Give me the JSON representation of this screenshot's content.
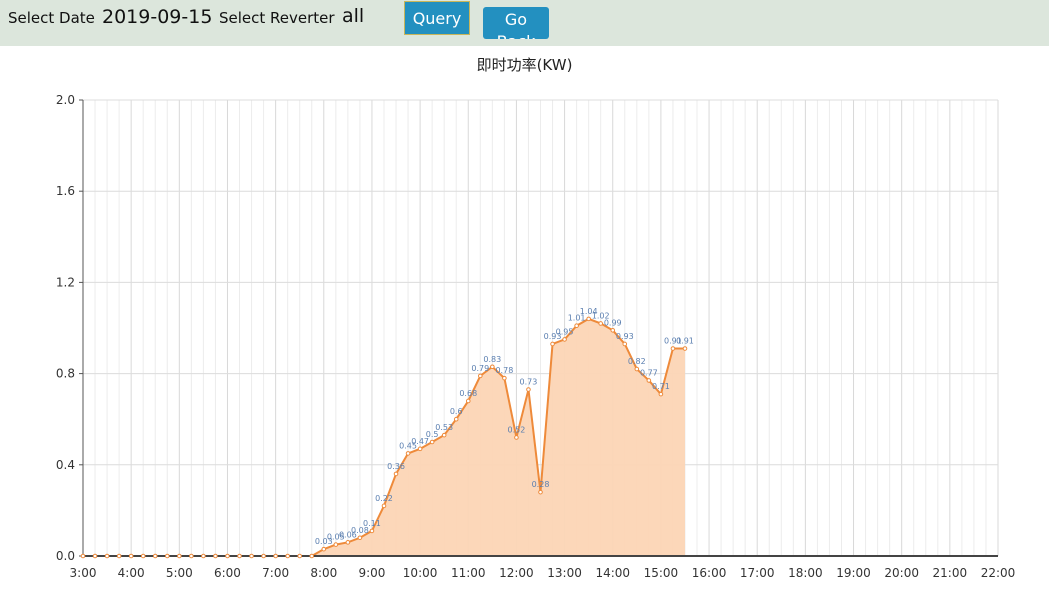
{
  "toolbar": {
    "date_label": "Select Date",
    "date_value": "2019-09-15",
    "reverter_label": "Select Reverter",
    "reverter_value": "all",
    "query_button": "Query",
    "back_button": "Go Back"
  },
  "chart_data": {
    "type": "area",
    "title": "即时功率(KW)",
    "xlabel": "",
    "ylabel": "",
    "xlim_hours": [
      3,
      22
    ],
    "ylim": [
      0,
      2.0
    ],
    "y_ticks": [
      "0.0",
      "0.4",
      "0.8",
      "1.2",
      "1.6",
      "2.0"
    ],
    "x_ticks": [
      "3:00",
      "4:00",
      "5:00",
      "6:00",
      "7:00",
      "8:00",
      "9:00",
      "10:00",
      "11:00",
      "12:00",
      "13:00",
      "14:00",
      "15:00",
      "16:00",
      "17:00",
      "18:00",
      "19:00",
      "20:00",
      "21:00",
      "22:00"
    ],
    "grid": true,
    "colors": {
      "line": "#ee8a3a",
      "fill": "#fcd5b5",
      "label": "#5b7fb0"
    },
    "x_hours": [
      3,
      3.25,
      3.5,
      3.75,
      4,
      4.25,
      4.5,
      4.75,
      5,
      5.25,
      5.5,
      5.75,
      6,
      6.25,
      6.5,
      6.75,
      7,
      7.25,
      7.5,
      7.75,
      8,
      8.25,
      8.5,
      8.75,
      9,
      9.25,
      9.5,
      9.75,
      10,
      10.25,
      10.5,
      10.75,
      11,
      11.25,
      11.5,
      11.75,
      12,
      12.25,
      12.5,
      12.75,
      13,
      13.25,
      13.5,
      13.75,
      14,
      14.25,
      14.5,
      14.75,
      15,
      15.25,
      15.5
    ],
    "values": [
      0,
      0,
      0,
      0,
      0,
      0,
      0,
      0,
      0,
      0,
      0,
      0,
      0,
      0,
      0,
      0,
      0,
      0,
      0,
      0,
      0.03,
      0.05,
      0.06,
      0.08,
      0.11,
      0.22,
      0.36,
      0.45,
      0.47,
      0.5,
      0.53,
      0.6,
      0.68,
      0.79,
      0.83,
      0.78,
      0.52,
      0.73,
      0.28,
      0.93,
      0.95,
      1.01,
      1.04,
      1.02,
      0.99,
      0.93,
      0.82,
      0.77,
      0.71,
      0.91,
      0.91
    ],
    "data_labels": [
      "",
      "",
      "",
      "",
      "",
      "",
      "",
      "",
      "",
      "",
      "",
      "",
      "",
      "",
      "",
      "",
      "",
      "",
      "",
      "",
      "0.03",
      "0.05",
      "0.06",
      "0.08",
      "0.11",
      "0.22",
      "0.36",
      "0.45",
      "0.47",
      "0.5",
      "0.53",
      "0.6",
      "0.68",
      "0.79",
      "0.83",
      "0.78",
      "0.52",
      "0.73",
      "0.28",
      "0.93",
      "0.95",
      "1.01",
      "1.04",
      "1.02",
      "0.99",
      "0.93",
      "0.82",
      "0.77",
      "0.71",
      "0.91",
      "0.91"
    ]
  }
}
